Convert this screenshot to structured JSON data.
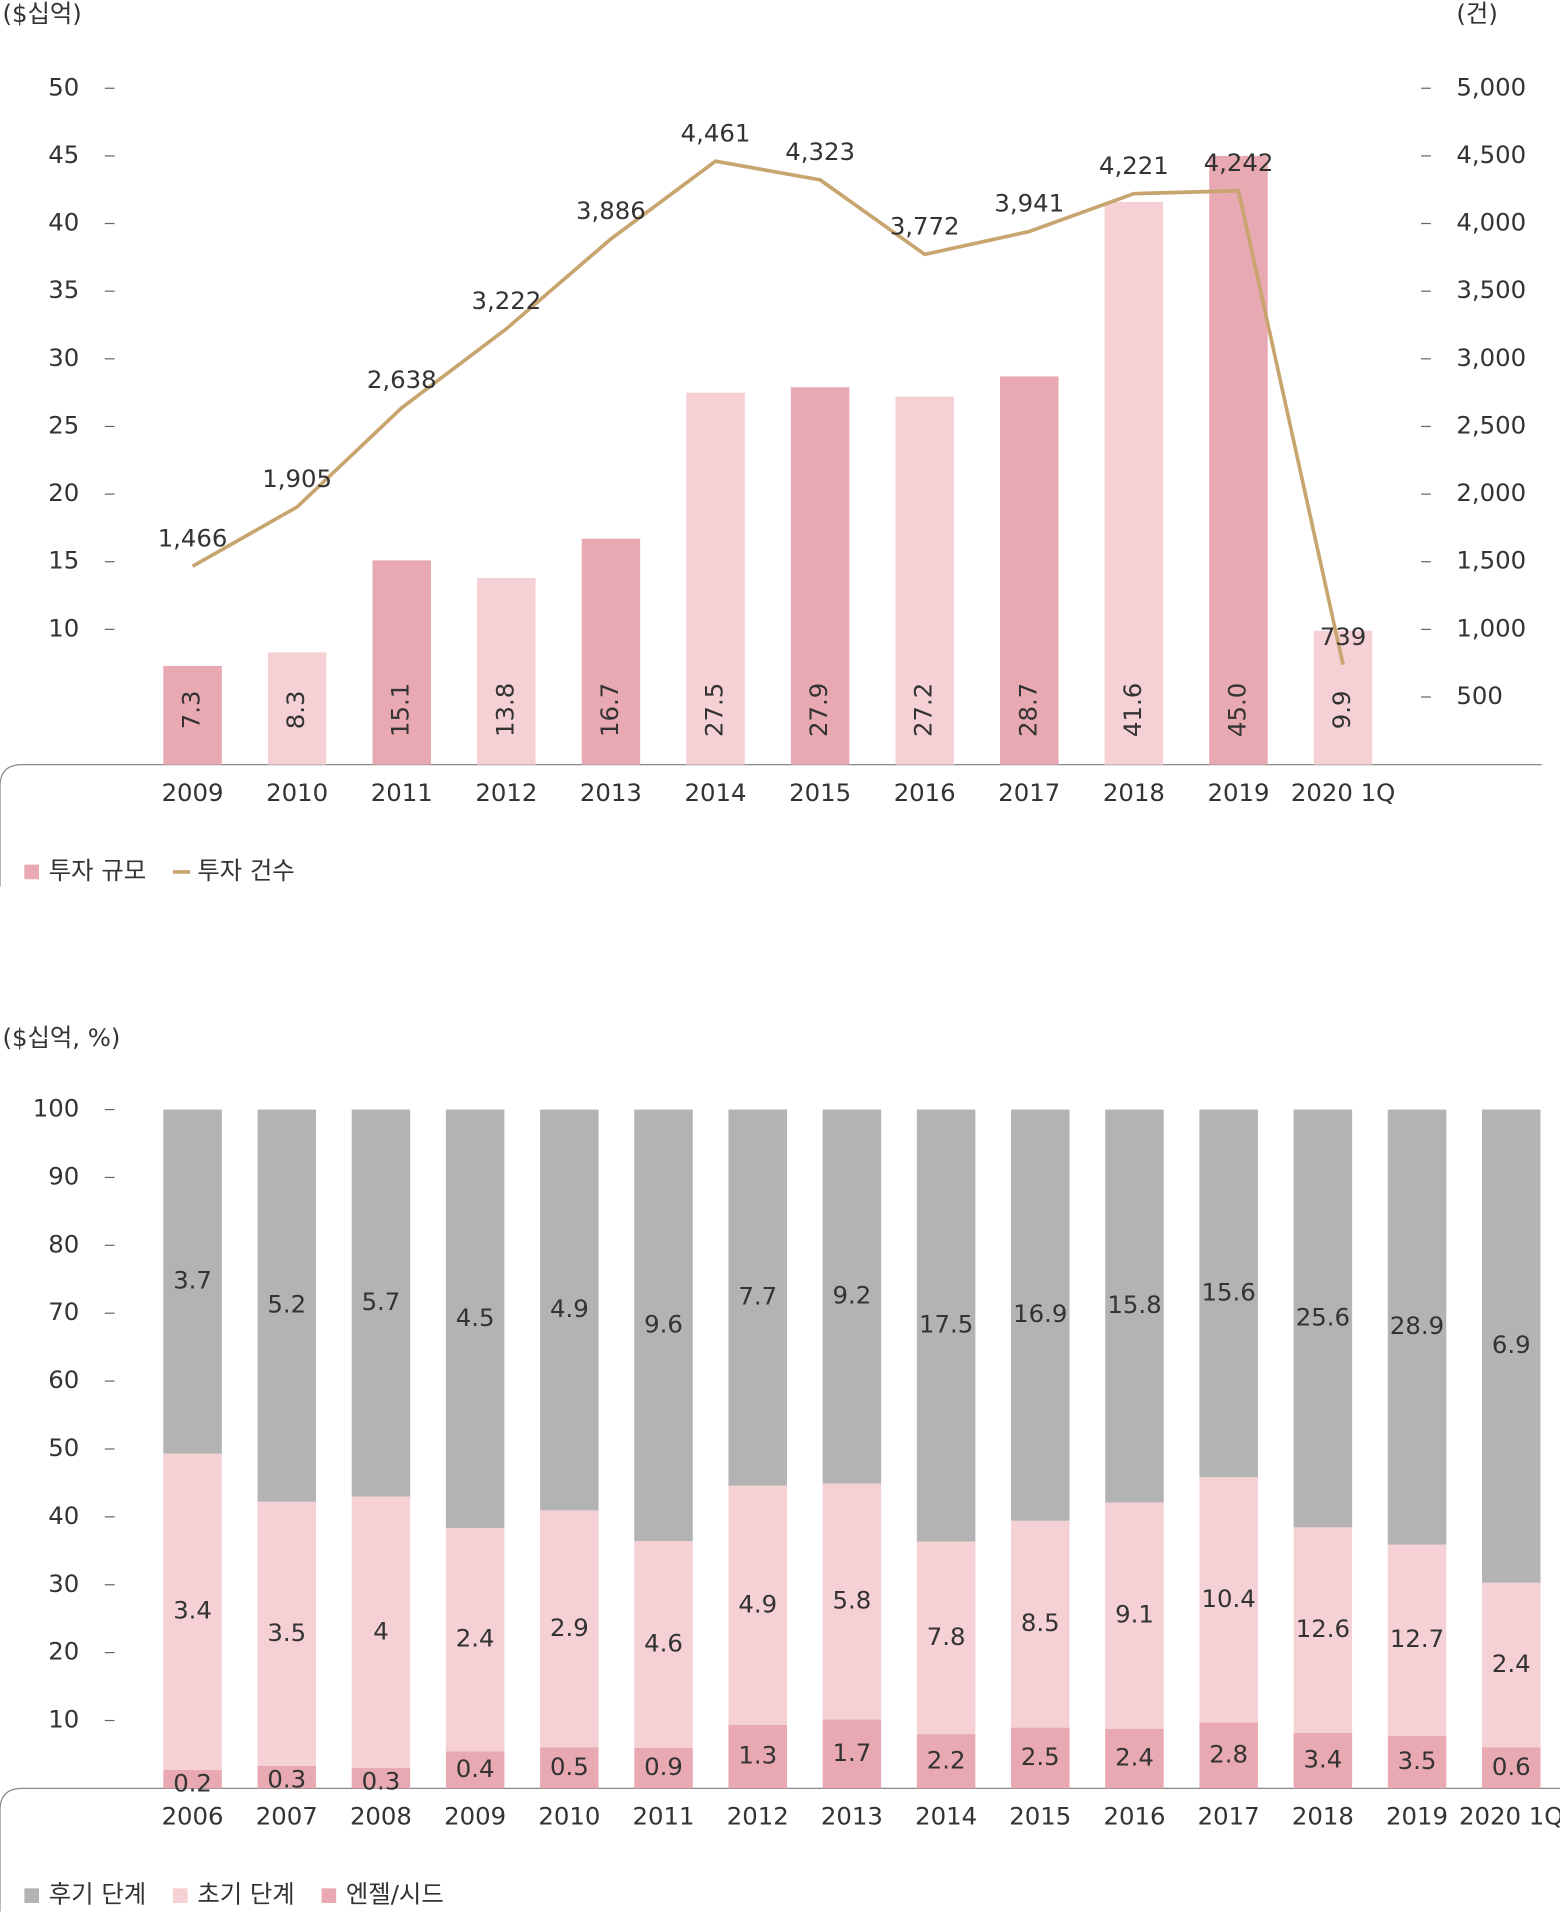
{
  "chart_data": [
    {
      "type": "combo",
      "y_label": "($십억)",
      "y2_label": "(건)",
      "categories": [
        "2009",
        "2010",
        "2011",
        "2012",
        "2013",
        "2014",
        "2015",
        "2016",
        "2017",
        "2018",
        "2019",
        "2020 1Q"
      ],
      "ylim": [
        0,
        50
      ],
      "yticks": [
        10,
        15,
        20,
        25,
        30,
        35,
        40,
        45,
        50
      ],
      "y2lim": [
        0,
        5000
      ],
      "y2ticks": [
        500,
        {
          "value": 1000,
          "label": "1,000"
        },
        {
          "value": 1500,
          "label": "1,500"
        },
        {
          "value": 2000,
          "label": "2,000"
        },
        {
          "value": 2500,
          "label": "2,500"
        },
        {
          "value": 3000,
          "label": "3,000"
        },
        {
          "value": 3500,
          "label": "3,500"
        },
        {
          "value": 4000,
          "label": "4,000"
        },
        {
          "value": 4500,
          "label": "4,500"
        },
        {
          "value": 5000,
          "label": "5,000"
        }
      ],
      "series": [
        {
          "name": "투자 규모",
          "type": "bar",
          "color": "#e8a9b3",
          "colors": [
            "#e8a9b3",
            "#f5d0d4",
            "#e8a9b3",
            "#f5d0d4",
            "#e8a9b3",
            "#f5d0d4",
            "#e8a9b3",
            "#f5d0d4",
            "#e8a9b3",
            "#f5d0d4",
            "#e8a9b3",
            "#f5d0d4"
          ],
          "values": [
            7.3,
            8.3,
            15.1,
            13.8,
            16.7,
            27.5,
            27.9,
            27.2,
            28.7,
            41.6,
            45.0,
            9.9
          ],
          "value_labels": [
            "7.3",
            "8.3",
            "15.1",
            "13.8",
            "16.7",
            "27.5",
            "27.9",
            "27.2",
            "28.7",
            "41.6",
            "45.0",
            "9.9"
          ]
        },
        {
          "name": "투자 건수",
          "type": "line",
          "axis": "y2",
          "color": "#c8a46e",
          "values": [
            1466,
            1905,
            2638,
            3222,
            3886,
            4461,
            4323,
            3772,
            3941,
            4221,
            4242,
            739
          ],
          "value_labels": [
            "1,466",
            "1,905",
            "2,638",
            "3,222",
            "3,886",
            "4,461",
            "4,323",
            "3,772",
            "3,941",
            "4,221",
            "4,242",
            "739"
          ]
        }
      ]
    },
    {
      "type": "bar",
      "stacking": "percent",
      "y_label": "($십억, %)",
      "categories": [
        "2006",
        "2007",
        "2008",
        "2009",
        "2010",
        "2011",
        "2012",
        "2013",
        "2014",
        "2015",
        "2016",
        "2017",
        "2018",
        "2019",
        "2020 1Q"
      ],
      "ylim": [
        0,
        100
      ],
      "yticks": [
        10,
        20,
        30,
        40,
        50,
        60,
        70,
        80,
        90,
        100
      ],
      "series": [
        {
          "name": "후기 단계",
          "color": "#b3b3b3",
          "values": [
            3.7,
            5.2,
            5.7,
            4.5,
            4.9,
            9.6,
            7.7,
            9.2,
            17.5,
            16.9,
            15.8,
            15.6,
            25.6,
            28.9,
            6.9
          ]
        },
        {
          "name": "초기 단계",
          "color": "#f5d0d4",
          "values": [
            3.4,
            3.5,
            4.0,
            2.4,
            2.9,
            4.6,
            4.9,
            5.8,
            7.8,
            8.5,
            9.1,
            10.4,
            12.6,
            12.7,
            2.4
          ]
        },
        {
          "name": "엔젤/시드",
          "color": "#e8a9b3",
          "values": [
            0.2,
            0.3,
            0.3,
            0.4,
            0.5,
            0.9,
            1.3,
            1.7,
            2.2,
            2.5,
            2.4,
            2.8,
            3.4,
            3.5,
            0.6
          ]
        }
      ]
    }
  ]
}
